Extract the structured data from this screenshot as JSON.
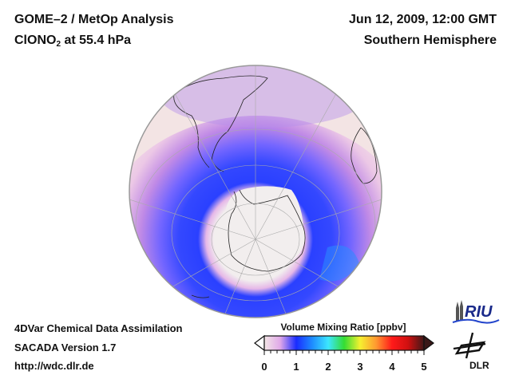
{
  "header": {
    "title_line1": "GOME–2 / MetOp Analysis",
    "species_main": "ClONO",
    "species_sub": "2",
    "species_rest": " at 55.4 hPa",
    "date": "Jun 12, 2009, 12:00 GMT",
    "region": "Southern Hemisphere"
  },
  "footer": {
    "line1": "4DVar Chemical Data Assimilation",
    "line2": "SACADA Version 1.7",
    "line3": "http://wdc.dlr.de"
  },
  "colorbar": {
    "title": "Volume Mixing Ratio [ppbv]",
    "ticks": [
      "0",
      "1",
      "2",
      "3",
      "4",
      "5"
    ],
    "min": 0,
    "max": 5,
    "colors": [
      "#f3e6e6",
      "#e0a8e8",
      "#1a2cff",
      "#1e8cff",
      "#3ce6ff",
      "#33dd33",
      "#f5f030",
      "#ff9930",
      "#ff1a1a",
      "#d01010",
      "#401818"
    ]
  },
  "logos": {
    "riu_text": "RIU",
    "dlr_text": "DLR"
  },
  "map": {
    "projection": "orthographic",
    "land_color": "#f2eeee",
    "background_low": "#f3e4e4",
    "band_color": "#7a6cff",
    "core_color": "#1a40ff"
  }
}
